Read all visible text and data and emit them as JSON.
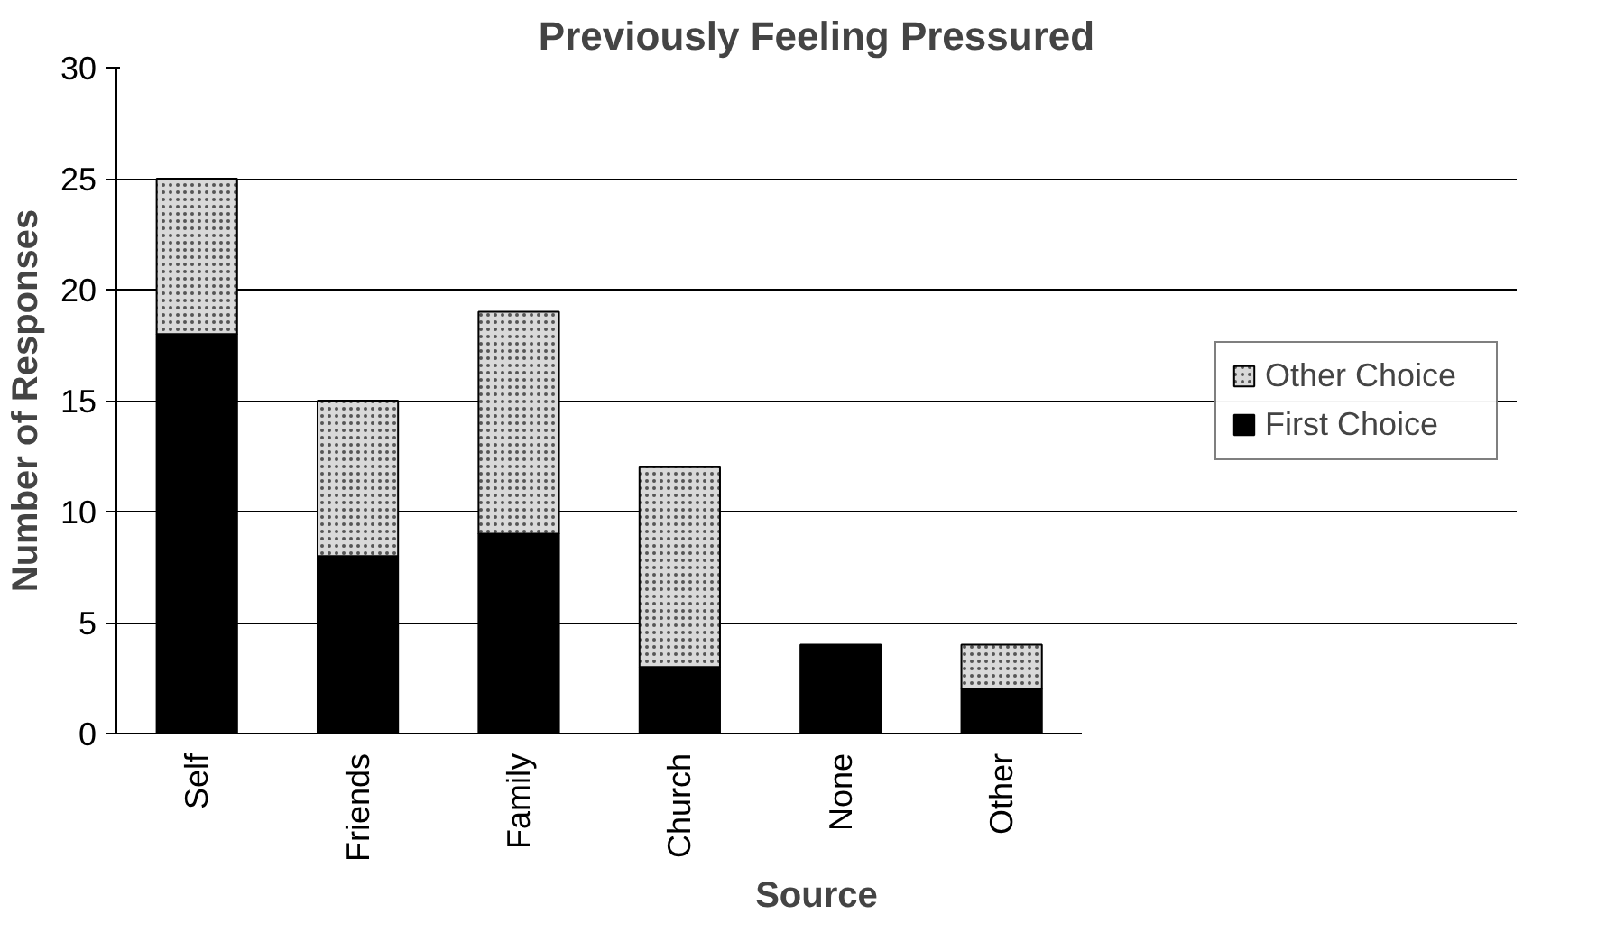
{
  "chart_data": {
    "type": "bar",
    "title": "Previously Feeling Pressured",
    "xlabel": "Source",
    "ylabel": "Number of Responses",
    "categories": [
      "Self",
      "Friends",
      "Family",
      "Church",
      "None",
      "Other"
    ],
    "stacked": true,
    "series": [
      {
        "name": "First Choice",
        "color": "#000000",
        "values": [
          18,
          8,
          9,
          3,
          4,
          2
        ]
      },
      {
        "name": "Other Choice",
        "color": "#d9d9d9",
        "values": [
          7,
          7,
          10,
          9,
          0,
          2
        ]
      }
    ],
    "ylim": [
      0,
      30
    ],
    "yticks": [
      0,
      5,
      10,
      15,
      20,
      25,
      30
    ],
    "grid": "y",
    "legend": "right"
  }
}
